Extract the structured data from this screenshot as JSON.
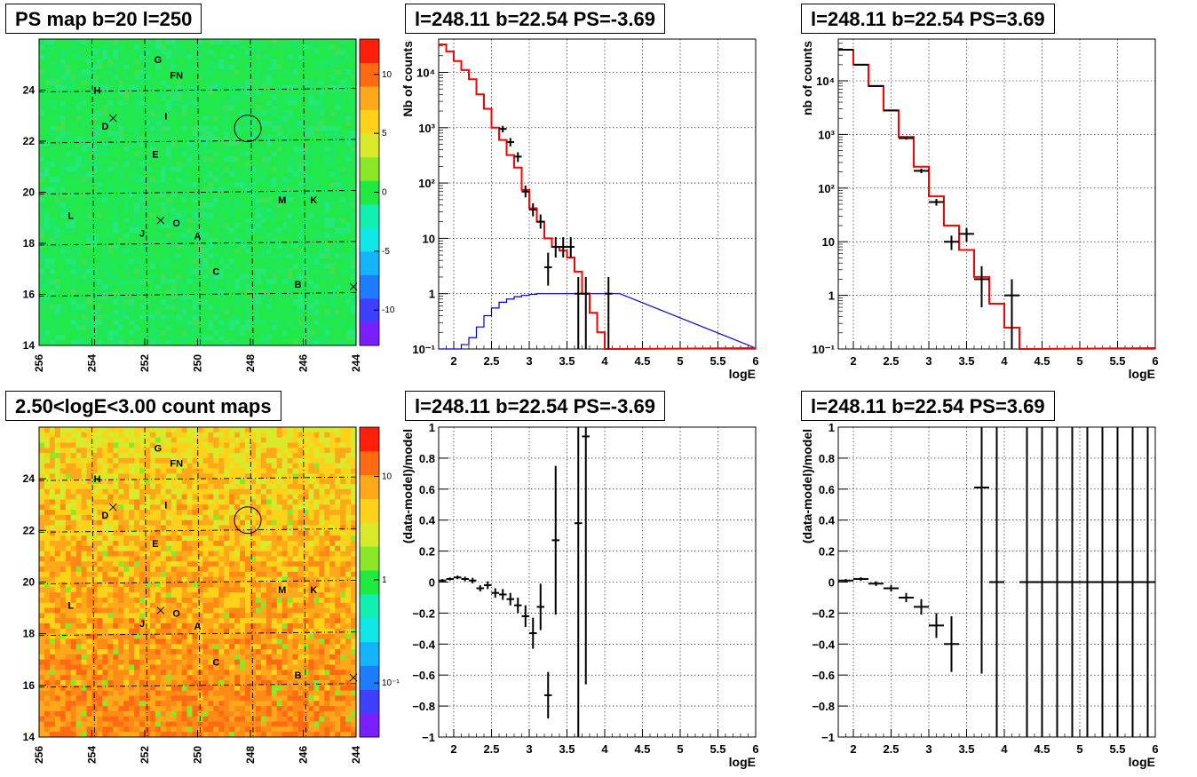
{
  "colors": {
    "map_green": "#22e84a",
    "map_orange": "#f26a22",
    "model_red": "#ff0000",
    "model_blue": "#0000cc",
    "marker": "#000000"
  },
  "chart_data": [
    {
      "type": "heatmap",
      "title": "PS map b=20 l=250",
      "xlim": [
        256,
        244
      ],
      "ylim": [
        14,
        26
      ],
      "x_ticks": [
        "256",
        "254",
        "252",
        "250",
        "248",
        "246",
        "244"
      ],
      "y_ticks": [
        "14",
        "16",
        "18",
        "20",
        "22",
        "24"
      ],
      "colorbar": {
        "scale": "linear",
        "range": [
          -13,
          13
        ],
        "ticks": [
          "10",
          "5",
          "0",
          "-5",
          "-10"
        ],
        "tick_values": [
          10,
          5,
          0,
          -5,
          -10
        ]
      },
      "dominant_value": 0,
      "circle": {
        "l": 248.1,
        "b": 22.5
      },
      "source_labels": [
        {
          "name": "G",
          "l": 251.5,
          "b": 25.2
        },
        {
          "name": "FN",
          "l": 250.8,
          "b": 24.6
        },
        {
          "name": "H",
          "l": 253.8,
          "b": 24.0
        },
        {
          "name": "D",
          "l": 253.5,
          "b": 22.6
        },
        {
          "name": "I",
          "l": 251.2,
          "b": 23.0
        },
        {
          "name": "E",
          "l": 251.6,
          "b": 21.5
        },
        {
          "name": "M",
          "l": 246.8,
          "b": 19.7
        },
        {
          "name": "K",
          "l": 245.6,
          "b": 19.7
        },
        {
          "name": "L",
          "l": 254.8,
          "b": 19.1
        },
        {
          "name": "J",
          "l": 252.1,
          "b": 18.4
        },
        {
          "name": "O",
          "l": 250.8,
          "b": 18.8
        },
        {
          "name": "A",
          "l": 250.0,
          "b": 18.3
        },
        {
          "name": "C",
          "l": 249.3,
          "b": 16.9
        },
        {
          "name": "B",
          "l": 246.2,
          "b": 16.4
        }
      ],
      "crosses": [
        {
          "l": 253.2,
          "b": 22.9
        },
        {
          "l": 251.4,
          "b": 18.9
        },
        {
          "l": 244.1,
          "b": 16.3
        }
      ]
    },
    {
      "type": "line",
      "title": "l=248.11 b=22.54 PS=-3.69",
      "xlabel": "logE",
      "ylabel": "Nb of counts",
      "xlim": [
        1.8,
        6
      ],
      "ylim": [
        0.1,
        40000
      ],
      "yscale": "log",
      "x_ticks": [
        "2",
        "2.5",
        "3",
        "3.5",
        "4",
        "4.5",
        "5",
        "5.5",
        "6"
      ],
      "y_ticks": [
        "10⁻¹",
        "1",
        "10",
        "10²",
        "10³",
        "10⁴"
      ],
      "grid": true,
      "x": [
        1.85,
        1.95,
        2.05,
        2.15,
        2.25,
        2.35,
        2.45,
        2.55,
        2.65,
        2.75,
        2.85,
        2.95,
        3.05,
        3.15,
        3.25,
        3.35,
        3.45,
        3.55,
        3.65,
        3.75,
        3.85,
        3.95,
        4.05,
        4.15
      ],
      "series": [
        {
          "name": "",
          "style": "step",
          "values": [
            32000,
            24000,
            16000,
            11000,
            7500,
            4000,
            2200,
            1000,
            600,
            320,
            190,
            75,
            35,
            20,
            10,
            7.0,
            6.0,
            4.5,
            2.5,
            1.0,
            0.45,
            0.2,
            0.1,
            0.1
          ]
        },
        {
          "name": "",
          "style": "step",
          "values": [
            0.1,
            0.1,
            0.1,
            0.12,
            0.16,
            0.25,
            0.4,
            0.55,
            0.7,
            0.8,
            0.88,
            0.93,
            0.97,
            1.0,
            1.0,
            1.0,
            1.0,
            1.0,
            1.0,
            1.0,
            1.0,
            1.0,
            1.0,
            1.0
          ]
        }
      ],
      "points": [
        {
          "x": 2.65,
          "y": 950,
          "lo": 820,
          "hi": 1080
        },
        {
          "x": 2.75,
          "y": 550,
          "lo": 460,
          "hi": 650
        },
        {
          "x": 2.85,
          "y": 300,
          "lo": 240,
          "hi": 360
        },
        {
          "x": 2.95,
          "y": 70,
          "lo": 55,
          "hi": 90
        },
        {
          "x": 3.05,
          "y": 33,
          "lo": 25,
          "hi": 43
        },
        {
          "x": 3.15,
          "y": 20,
          "lo": 15,
          "hi": 27
        },
        {
          "x": 3.25,
          "y": 3,
          "lo": 1.4,
          "hi": 5.5
        },
        {
          "x": 3.35,
          "y": 7,
          "lo": 4.5,
          "hi": 10.5
        },
        {
          "x": 3.45,
          "y": 7,
          "lo": 4.5,
          "hi": 10.5
        },
        {
          "x": 3.55,
          "y": 7,
          "lo": 4.5,
          "hi": 10.5
        },
        {
          "x": 3.65,
          "y": 1,
          "lo": 0.1,
          "hi": 2
        },
        {
          "x": 3.75,
          "y": 1,
          "lo": 0.1,
          "hi": 2
        },
        {
          "x": 4.05,
          "y": 1,
          "lo": 0.1,
          "hi": 2
        }
      ]
    },
    {
      "type": "line",
      "title": "l=248.11 b=22.54 PS=3.69",
      "xlabel": "logE",
      "ylabel": "nb of counts",
      "xlim": [
        1.8,
        6
      ],
      "ylim": [
        0.1,
        60000
      ],
      "yscale": "log",
      "x_ticks": [
        "2",
        "2.5",
        "3",
        "3.5",
        "4",
        "4.5",
        "5",
        "5.5",
        "6"
      ],
      "y_ticks": [
        "10⁻¹",
        "1",
        "10",
        "10²",
        "10³",
        "10⁴"
      ],
      "grid": true,
      "x": [
        1.9,
        2.1,
        2.3,
        2.5,
        2.7,
        2.9,
        3.1,
        3.3,
        3.5,
        3.7,
        3.9,
        4.1,
        4.3
      ],
      "series": [
        {
          "name": "",
          "style": "step",
          "values": [
            38000,
            20000,
            8000,
            2800,
            900,
            250,
            70,
            20,
            7,
            2.2,
            0.7,
            0.25,
            0.1
          ]
        }
      ],
      "points": [
        {
          "x": 1.9,
          "y": 38000,
          "lo": 37000,
          "hi": 39000
        },
        {
          "x": 2.1,
          "y": 20000,
          "lo": 19500,
          "hi": 20500
        },
        {
          "x": 2.3,
          "y": 8000,
          "lo": 7800,
          "hi": 8200
        },
        {
          "x": 2.5,
          "y": 2800,
          "lo": 2700,
          "hi": 2900
        },
        {
          "x": 2.7,
          "y": 850,
          "lo": 800,
          "hi": 900
        },
        {
          "x": 2.9,
          "y": 210,
          "lo": 190,
          "hi": 230
        },
        {
          "x": 3.1,
          "y": 55,
          "lo": 47,
          "hi": 63
        },
        {
          "x": 3.3,
          "y": 10,
          "lo": 7,
          "hi": 13
        },
        {
          "x": 3.5,
          "y": 14,
          "lo": 10,
          "hi": 18
        },
        {
          "x": 3.7,
          "y": 2,
          "lo": 0.6,
          "hi": 3.5
        },
        {
          "x": 4.1,
          "y": 1,
          "lo": 0.1,
          "hi": 2
        }
      ]
    },
    {
      "type": "heatmap",
      "title": "2.50<logE<3.00 count maps",
      "xlim": [
        256,
        244
      ],
      "ylim": [
        14,
        26
      ],
      "x_ticks": [
        "256",
        "254",
        "252",
        "250",
        "248",
        "246",
        "244"
      ],
      "y_ticks": [
        "14",
        "16",
        "18",
        "20",
        "22",
        "24"
      ],
      "colorbar": {
        "scale": "log",
        "range": [
          0.03,
          30
        ],
        "ticks": [
          "10",
          "1",
          "10⁻¹"
        ],
        "tick_values": [
          10,
          1,
          0.1
        ]
      },
      "dominant_value": 5,
      "circle": {
        "l": 248.1,
        "b": 22.4
      }
    },
    {
      "type": "scatter",
      "title": "l=248.11 b=22.54 PS=-3.69",
      "xlabel": "logE",
      "ylabel": "(data-model)/model",
      "xlim": [
        1.8,
        6
      ],
      "ylim": [
        -1,
        1
      ],
      "x_ticks": [
        "2",
        "2.5",
        "3",
        "3.5",
        "4",
        "4.5",
        "5",
        "5.5",
        "6"
      ],
      "y_ticks": [
        "−1",
        "−0.8",
        "−0.6",
        "−0.4",
        "−0.2",
        "0",
        "0.2",
        "0.4",
        "0.6",
        "0.8",
        "1"
      ],
      "y_tick_values": [
        -1,
        -0.8,
        -0.6,
        -0.4,
        -0.2,
        0,
        0.2,
        0.4,
        0.6,
        0.8,
        1
      ],
      "grid": true,
      "xerr": 0.05,
      "points": [
        {
          "x": 1.85,
          "y": 0.01,
          "e": 0.01
        },
        {
          "x": 1.95,
          "y": 0.02,
          "e": 0.01
        },
        {
          "x": 2.05,
          "y": 0.03,
          "e": 0.012
        },
        {
          "x": 2.15,
          "y": 0.02,
          "e": 0.015
        },
        {
          "x": 2.25,
          "y": 0.01,
          "e": 0.018
        },
        {
          "x": 2.35,
          "y": -0.04,
          "e": 0.02
        },
        {
          "x": 2.45,
          "y": -0.02,
          "e": 0.025
        },
        {
          "x": 2.55,
          "y": -0.07,
          "e": 0.03
        },
        {
          "x": 2.65,
          "y": -0.08,
          "e": 0.035
        },
        {
          "x": 2.75,
          "y": -0.11,
          "e": 0.04
        },
        {
          "x": 2.85,
          "y": -0.15,
          "e": 0.05
        },
        {
          "x": 2.95,
          "y": -0.22,
          "e": 0.07
        },
        {
          "x": 3.05,
          "y": -0.33,
          "e": 0.1
        },
        {
          "x": 3.15,
          "y": -0.16,
          "e": 0.15
        },
        {
          "x": 3.25,
          "y": -0.73,
          "e": 0.15
        },
        {
          "x": 3.35,
          "y": 0.27,
          "e": 0.48
        },
        {
          "x": 3.65,
          "y": 0.38,
          "e": 1.6
        },
        {
          "x": 3.75,
          "y": 0.94,
          "e": 1.6
        }
      ]
    },
    {
      "type": "scatter",
      "title": "l=248.11 b=22.54 PS=3.69",
      "xlabel": "logE",
      "ylabel": "(data-model)/model",
      "xlim": [
        1.8,
        6
      ],
      "ylim": [
        -1,
        1
      ],
      "x_ticks": [
        "2",
        "2.5",
        "3",
        "3.5",
        "4",
        "4.5",
        "5",
        "5.5",
        "6"
      ],
      "y_ticks": [
        "−1",
        "−0.8",
        "−0.6",
        "−0.4",
        "−0.2",
        "0",
        "0.2",
        "0.4",
        "0.6",
        "0.8",
        "1"
      ],
      "y_tick_values": [
        -1,
        -0.8,
        -0.6,
        -0.4,
        -0.2,
        0,
        0.2,
        0.4,
        0.6,
        0.8,
        1
      ],
      "grid": true,
      "xerr": 0.1,
      "points": [
        {
          "x": 1.9,
          "y": 0.01,
          "e": 0.01
        },
        {
          "x": 2.1,
          "y": 0.02,
          "e": 0.012
        },
        {
          "x": 2.3,
          "y": -0.01,
          "e": 0.015
        },
        {
          "x": 2.5,
          "y": -0.04,
          "e": 0.02
        },
        {
          "x": 2.7,
          "y": -0.1,
          "e": 0.03
        },
        {
          "x": 2.9,
          "y": -0.16,
          "e": 0.05
        },
        {
          "x": 3.1,
          "y": -0.28,
          "e": 0.08
        },
        {
          "x": 3.3,
          "y": -0.4,
          "e": 0.18
        },
        {
          "x": 3.7,
          "y": 0.61,
          "e": 1.2
        },
        {
          "x": 3.9,
          "y": 0,
          "e": 2
        },
        {
          "x": 4.3,
          "y": 0,
          "e": 2
        },
        {
          "x": 4.5,
          "y": 0,
          "e": 2
        },
        {
          "x": 4.7,
          "y": 0,
          "e": 2
        },
        {
          "x": 4.9,
          "y": 0,
          "e": 2
        },
        {
          "x": 5.1,
          "y": 0,
          "e": 2
        },
        {
          "x": 5.3,
          "y": 0,
          "e": 2
        },
        {
          "x": 5.5,
          "y": 0,
          "e": 2
        },
        {
          "x": 5.7,
          "y": 0,
          "e": 2
        },
        {
          "x": 5.9,
          "y": 0,
          "e": 2
        }
      ]
    }
  ]
}
